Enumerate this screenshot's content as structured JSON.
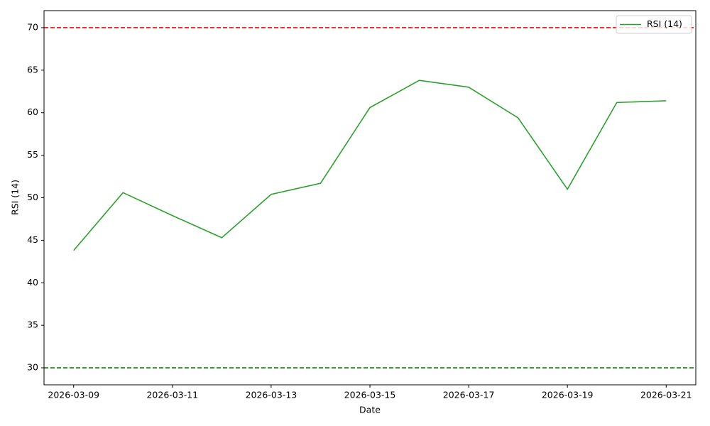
{
  "chart_data": {
    "type": "line",
    "xlabel": "Date",
    "ylabel": "RSI (14)",
    "x": [
      "2026-03-09",
      "2026-03-10",
      "2026-03-11",
      "2026-03-12",
      "2026-03-13",
      "2026-03-14",
      "2026-03-15",
      "2026-03-16",
      "2026-03-17",
      "2026-03-18",
      "2026-03-19",
      "2026-03-20",
      "2026-03-21"
    ],
    "series": [
      {
        "name": "RSI (14)",
        "color": "#2ca02c",
        "values": [
          43.8,
          50.6,
          47.9,
          45.3,
          50.4,
          51.7,
          60.6,
          63.8,
          63.0,
          59.4,
          51.0,
          61.2,
          61.4
        ]
      }
    ],
    "hlines": [
      {
        "value": 70,
        "color": "#ff0000"
      },
      {
        "value": 30,
        "color": "#008000"
      }
    ],
    "ylim": [
      28,
      72
    ],
    "yticks": [
      30,
      35,
      40,
      45,
      50,
      55,
      60,
      65,
      70
    ],
    "xticks": [
      "2026-03-09",
      "2026-03-11",
      "2026-03-13",
      "2026-03-15",
      "2026-03-17",
      "2026-03-19",
      "2026-03-21"
    ],
    "legend": "upper right",
    "grid": false
  }
}
